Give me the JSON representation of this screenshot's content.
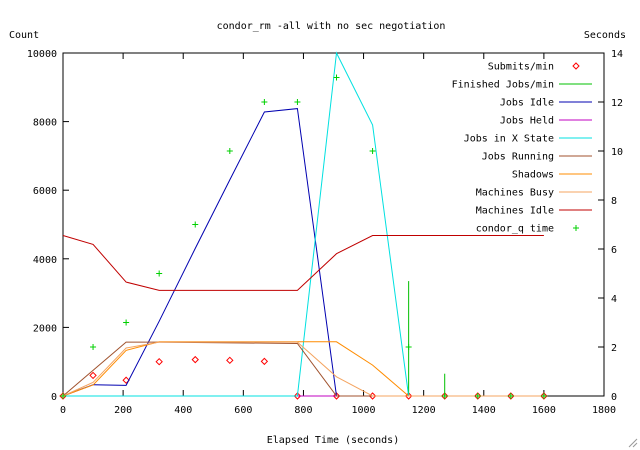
{
  "chart_data": {
    "type": "line",
    "title": "condor_rm -all with no sec negotiation",
    "xlabel": "Elapsed Time (seconds)",
    "ylabel": "Count",
    "y2label": "Seconds",
    "xlim": [
      0,
      1800
    ],
    "ylim": [
      0,
      10000
    ],
    "y2lim": [
      0,
      14
    ],
    "xticks": [
      0,
      200,
      400,
      600,
      800,
      1000,
      1200,
      1400,
      1600,
      1800
    ],
    "yticks": [
      0,
      2000,
      4000,
      6000,
      8000,
      10000
    ],
    "y2ticks": [
      0,
      2,
      4,
      6,
      8,
      10,
      12,
      14
    ],
    "grid": false,
    "legend_position": "top-right",
    "series": [
      {
        "name": "Submits/min",
        "style": "points",
        "marker": "diamond",
        "axis": "y",
        "color": "#ff0000",
        "x": [
          0,
          100,
          210,
          320,
          440,
          555,
          670,
          780,
          910,
          1030,
          1150,
          1270,
          1380,
          1490,
          1600
        ],
        "y": [
          0,
          600,
          460,
          1000,
          1060,
          1040,
          1010,
          0,
          0,
          0,
          0,
          0,
          0,
          0,
          0
        ]
      },
      {
        "name": "Finished Jobs/min",
        "style": "impulses",
        "axis": "y",
        "color": "#00c000",
        "x": [
          1150,
          1270
        ],
        "y": [
          3350,
          650
        ]
      },
      {
        "name": "Jobs Idle",
        "style": "line",
        "axis": "y",
        "color": "#0000b0",
        "x": [
          0,
          100,
          210,
          320,
          440,
          555,
          670,
          780,
          910
        ],
        "y": [
          0,
          330,
          310,
          2180,
          4300,
          6300,
          8280,
          8380,
          0
        ]
      },
      {
        "name": "Jobs Held",
        "style": "line",
        "axis": "y",
        "color": "#c000c0",
        "x": [
          0,
          780,
          910,
          1030
        ],
        "y": [
          0,
          0,
          0,
          0
        ]
      },
      {
        "name": "Jobs in X State",
        "style": "line",
        "axis": "y",
        "color": "#00e0e0",
        "x": [
          0,
          780,
          910,
          1030,
          1150,
          1270,
          1600
        ],
        "y": [
          0,
          0,
          10000,
          7900,
          0,
          0,
          0
        ]
      },
      {
        "name": "Jobs Running",
        "style": "line",
        "axis": "y",
        "color": "#a0522d",
        "x": [
          0,
          210,
          320,
          780,
          910,
          1030,
          1600
        ],
        "y": [
          0,
          1570,
          1570,
          1530,
          0,
          0,
          0
        ]
      },
      {
        "name": "Shadows",
        "style": "line",
        "axis": "y",
        "color": "#ff8c00",
        "x": [
          0,
          100,
          210,
          320,
          780,
          910,
          1030,
          1150,
          1600
        ],
        "y": [
          0,
          320,
          1330,
          1580,
          1580,
          1580,
          900,
          0,
          0
        ]
      },
      {
        "name": "Machines Busy",
        "style": "line",
        "axis": "y",
        "color": "#f4a460",
        "x": [
          0,
          100,
          210,
          320,
          780,
          910,
          1030,
          1150,
          1600
        ],
        "y": [
          0,
          400,
          1400,
          1570,
          1570,
          560,
          0,
          0,
          0
        ]
      },
      {
        "name": "Machines Idle",
        "style": "line",
        "axis": "y",
        "color": "#c00000",
        "x": [
          0,
          100,
          210,
          320,
          780,
          910,
          1030,
          1600
        ],
        "y": [
          4680,
          4420,
          3320,
          3080,
          3080,
          4150,
          4680,
          4680
        ]
      },
      {
        "name": "condor_q time",
        "style": "points",
        "marker": "plus",
        "axis": "y2",
        "color": "#00d000",
        "x": [
          0,
          100,
          210,
          320,
          440,
          555,
          670,
          780,
          910,
          1030,
          1150,
          1270,
          1380,
          1490,
          1600
        ],
        "y": [
          0,
          2.0,
          3.0,
          5.0,
          7.0,
          10.0,
          12.0,
          12.0,
          13.0,
          10.0,
          2.0,
          0,
          0,
          0,
          0
        ]
      }
    ]
  }
}
